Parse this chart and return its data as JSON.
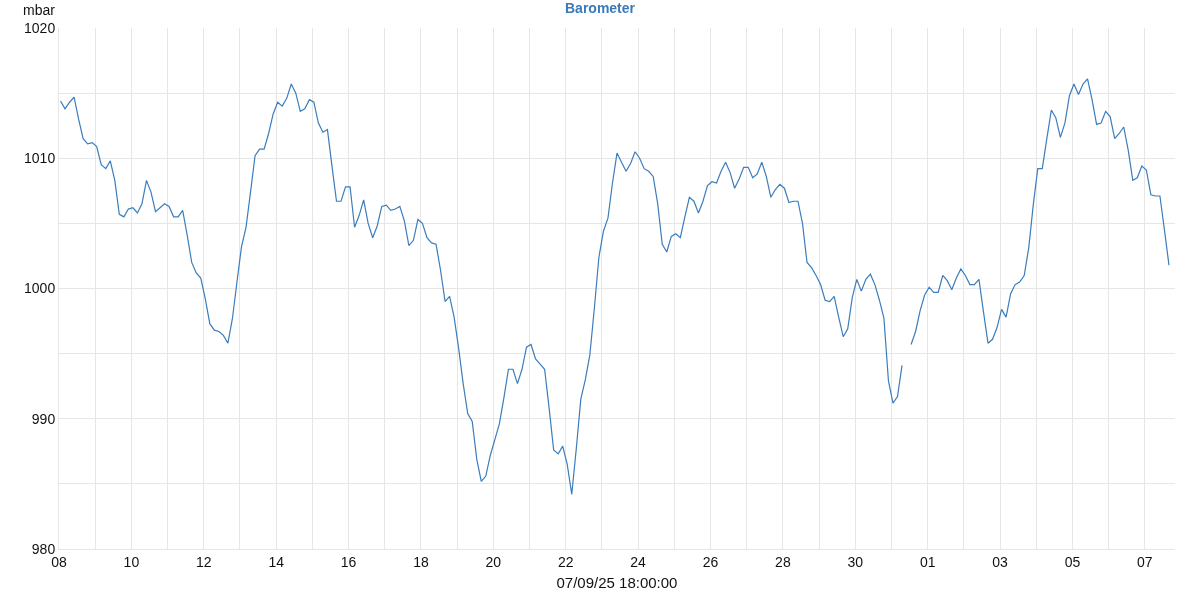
{
  "chart_data": {
    "type": "line",
    "title": "Barometer",
    "xlabel": "07/09/25 18:00:00",
    "ylabel": "mbar",
    "x": [
      "--08-08T01:00",
      "--08-08T04:00",
      "--08-08T07:00",
      "--08-08T10:00",
      "--08-08T13:00",
      "--08-08T16:00",
      "--08-08T19:00",
      "--08-08T22:00",
      "--08-09T01:00",
      "--08-09T04:00",
      "--08-09T07:00",
      "--08-09T10:00",
      "--08-09T13:00",
      "--08-09T16:00",
      "--08-09T19:00",
      "--08-09T22:00",
      "--08-10T01:00",
      "--08-10T04:00",
      "--08-10T07:00",
      "--08-10T10:00",
      "--08-10T13:00",
      "--08-10T16:00",
      "--08-10T19:00",
      "--08-10T22:00",
      "--08-11T01:00",
      "--08-11T04:00",
      "--08-11T07:00",
      "--08-11T10:00",
      "--08-11T13:00",
      "--08-11T16:00",
      "--08-11T19:00",
      "--08-11T22:00",
      "--08-12T01:00",
      "--08-12T04:00",
      "--08-12T07:00",
      "--08-12T10:00",
      "--08-12T13:00",
      "--08-12T16:00",
      "--08-12T19:00",
      "--08-12T22:00",
      "--08-13T01:00",
      "--08-13T04:00",
      "--08-13T07:00",
      "--08-13T10:00",
      "--08-13T13:00",
      "--08-13T16:00",
      "--08-13T19:00",
      "--08-13T22:00",
      "--08-14T01:00",
      "--08-14T04:00",
      "--08-14T07:00",
      "--08-14T10:00",
      "--08-14T13:00",
      "--08-14T16:00",
      "--08-14T19:00",
      "--08-14T22:00",
      "--08-15T01:00",
      "--08-15T04:00",
      "--08-15T07:00",
      "--08-15T10:00",
      "--08-15T13:00",
      "--08-15T16:00",
      "--08-15T19:00",
      "--08-15T22:00",
      "--08-16T01:00",
      "--08-16T04:00",
      "--08-16T07:00",
      "--08-16T10:00",
      "--08-16T13:00",
      "--08-16T16:00",
      "--08-16T19:00",
      "--08-16T22:00",
      "--08-17T01:00",
      "--08-17T04:00",
      "--08-17T07:00",
      "--08-17T10:00",
      "--08-17T13:00",
      "--08-17T16:00",
      "--08-17T19:00",
      "--08-17T22:00",
      "--08-18T01:00",
      "--08-18T04:00",
      "--08-18T07:00",
      "--08-18T10:00",
      "--08-18T13:00",
      "--08-18T16:00",
      "--08-18T19:00",
      "--08-18T22:00",
      "--08-19T01:00",
      "--08-19T04:00",
      "--08-19T07:00",
      "--08-19T10:00",
      "--08-19T13:00",
      "--08-19T16:00",
      "--08-19T19:00",
      "--08-19T22:00",
      "--08-20T01:00",
      "--08-20T04:00",
      "--08-20T07:00",
      "--08-20T10:00",
      "--08-20T13:00",
      "--08-20T16:00",
      "--08-20T19:00",
      "--08-20T22:00",
      "--08-21T01:00",
      "--08-21T04:00",
      "--08-21T07:00",
      "--08-21T10:00",
      "--08-21T13:00",
      "--08-21T16:00",
      "--08-21T19:00",
      "--08-21T22:00",
      "--08-22T01:00",
      "--08-22T04:00",
      "--08-22T07:00",
      "--08-22T10:00",
      "--08-22T13:00",
      "--08-22T16:00",
      "--08-22T19:00",
      "--08-22T22:00",
      "--08-23T01:00",
      "--08-23T04:00",
      "--08-23T07:00",
      "--08-23T10:00",
      "--08-23T13:00",
      "--08-23T16:00",
      "--08-23T19:00",
      "--08-23T22:00",
      "--08-24T01:00",
      "--08-24T04:00",
      "--08-24T07:00",
      "--08-24T10:00",
      "--08-24T13:00",
      "--08-24T16:00",
      "--08-24T19:00",
      "--08-24T22:00",
      "--08-25T01:00",
      "--08-25T04:00",
      "--08-25T07:00",
      "--08-25T10:00",
      "--08-25T13:00",
      "--08-25T16:00",
      "--08-25T19:00",
      "--08-25T22:00",
      "--08-26T01:00",
      "--08-26T04:00",
      "--08-26T07:00",
      "--08-26T10:00",
      "--08-26T13:00",
      "--08-26T16:00",
      "--08-26T19:00",
      "--08-26T22:00",
      "--08-27T01:00",
      "--08-27T04:00",
      "--08-27T07:00",
      "--08-27T10:00",
      "--08-27T13:00",
      "--08-27T16:00",
      "--08-27T19:00",
      "--08-27T22:00",
      "--08-28T01:00",
      "--08-28T04:00",
      "--08-28T07:00",
      "--08-28T10:00",
      "--08-28T13:00",
      "--08-28T16:00",
      "--08-28T19:00",
      "--08-28T22:00",
      "--08-29T01:00",
      "--08-29T04:00",
      "--08-29T07:00",
      "--08-29T10:00",
      "--08-29T13:00",
      "--08-29T16:00",
      "--08-29T19:00",
      "--08-29T22:00",
      "--08-30T01:00",
      "--08-30T04:00",
      "--08-30T07:00",
      "--08-30T10:00",
      "--08-30T13:00",
      "--08-30T16:00",
      "--08-30T19:00",
      "--08-30T22:00",
      "--08-31T01:00",
      "--08-31T04:00",
      "--08-31T07:00",
      "--08-31T10:00",
      "--08-31T13:00",
      "--08-31T16:00",
      "--08-31T19:00",
      "--08-31T22:00",
      "--09-01T01:00",
      "--09-01T04:00",
      "--09-01T07:00",
      "--09-01T10:00",
      "--09-01T13:00",
      "--09-01T16:00",
      "--09-01T19:00",
      "--09-01T22:00",
      "--09-02T01:00",
      "--09-02T04:00",
      "--09-02T07:00",
      "--09-02T10:00",
      "--09-02T13:00",
      "--09-02T16:00",
      "--09-02T19:00",
      "--09-02T22:00",
      "--09-03T01:00",
      "--09-03T04:00",
      "--09-03T07:00",
      "--09-03T10:00",
      "--09-03T13:00",
      "--09-03T16:00",
      "--09-03T19:00",
      "--09-03T22:00",
      "--09-04T01:00",
      "--09-04T04:00",
      "--09-04T07:00",
      "--09-04T10:00",
      "--09-04T13:00",
      "--09-04T16:00",
      "--09-04T19:00",
      "--09-04T22:00",
      "--09-05T01:00",
      "--09-05T04:00",
      "--09-05T07:00",
      "--09-05T10:00",
      "--09-05T13:00",
      "--09-05T16:00",
      "--09-05T19:00",
      "--09-05T22:00",
      "--09-06T01:00",
      "--09-06T04:00",
      "--09-06T07:00",
      "--09-06T10:00",
      "--09-06T13:00",
      "--09-06T16:00",
      "--09-06T19:00",
      "--09-06T22:00",
      "--09-07T01:00",
      "--09-07T04:00",
      "--09-07T07:00",
      "--09-07T10:00",
      "--09-07T13:00",
      "--09-07T16:00"
    ],
    "series": [
      {
        "color": "#3b7dbd",
        "values": [
          1014.4,
          1013.8,
          1014.3,
          1014.7,
          1013.0,
          1011.5,
          1011.1,
          1011.2,
          1010.9,
          1009.5,
          1009.2,
          1009.8,
          1008.3,
          1005.7,
          1005.5,
          1006.1,
          1006.2,
          1005.8,
          1006.5,
          1008.3,
          1007.4,
          1005.9,
          1006.2,
          1006.5,
          1006.3,
          1005.5,
          1005.5,
          1006.0,
          1004.1,
          1002.0,
          1001.2,
          1000.8,
          999.2,
          997.3,
          996.8,
          996.7,
          996.4,
          995.8,
          997.7,
          1000.5,
          1003.2,
          1004.7,
          1007.4,
          1010.2,
          1010.7,
          1010.7,
          1011.9,
          1013.4,
          1014.3,
          1014.0,
          1014.6,
          1015.7,
          1015.0,
          1013.6,
          1013.8,
          1014.5,
          1014.3,
          1012.7,
          1012.0,
          1012.2,
          1009.4,
          1006.7,
          1006.7,
          1007.8,
          1007.8,
          1004.7,
          1005.6,
          1006.8,
          1005.0,
          1003.9,
          1004.8,
          1006.3,
          1006.4,
          1006.0,
          1006.1,
          1006.3,
          1005.2,
          1003.3,
          1003.7,
          1005.3,
          1005.0,
          1003.9,
          1003.5,
          1003.4,
          1001.4,
          999.0,
          999.4,
          997.8,
          995.4,
          992.7,
          990.4,
          989.8,
          986.9,
          985.2,
          985.6,
          987.2,
          988.4,
          989.6,
          991.6,
          993.8,
          993.8,
          992.7,
          993.8,
          995.5,
          995.7,
          994.6,
          994.2,
          993.8,
          990.8,
          987.6,
          987.3,
          987.9,
          986.5,
          984.2,
          987.7,
          991.5,
          993.0,
          994.9,
          998.5,
          1002.4,
          1004.4,
          1005.4,
          1008.1,
          1010.4,
          1009.7,
          1009.0,
          1009.6,
          1010.5,
          1010.0,
          1009.2,
          1009.0,
          1008.6,
          1006.5,
          1003.4,
          1002.8,
          1004.0,
          1004.2,
          1003.9,
          1005.5,
          1007.0,
          1006.7,
          1005.8,
          1006.7,
          1007.9,
          1008.2,
          1008.1,
          1009.0,
          1009.7,
          1008.9,
          1007.7,
          1008.4,
          1009.3,
          1009.3,
          1008.5,
          1008.8,
          1009.7,
          1008.6,
          1007.0,
          1007.6,
          1008.0,
          1007.7,
          1006.6,
          1006.7,
          1006.7,
          1005.0,
          1002.0,
          1001.6,
          1001.0,
          1000.3,
          999.1,
          999.0,
          999.4,
          997.8,
          996.3,
          996.9,
          999.3,
          1000.7,
          999.8,
          1000.7,
          1001.1,
          1000.3,
          999.1,
          997.7,
          992.9,
          991.2,
          991.7,
          994.1,
          null,
          995.7,
          996.7,
          998.3,
          999.5,
          1000.1,
          999.7,
          999.7,
          1001.0,
          1000.6,
          999.9,
          1000.8,
          1001.5,
          1001.0,
          1000.3,
          1000.3,
          1000.7,
          998.2,
          995.8,
          996.1,
          997.0,
          998.4,
          997.8,
          999.6,
          1000.3,
          1000.5,
          1001.0,
          1003.1,
          1006.4,
          1009.2,
          1009.2,
          1011.5,
          1013.7,
          1013.1,
          1011.6,
          1012.7,
          1014.8,
          1015.7,
          1014.9,
          1015.7,
          1016.1,
          1014.5,
          1012.6,
          1012.7,
          1013.6,
          1013.2,
          1011.5,
          1011.9,
          1012.4,
          1010.6,
          1008.3,
          1008.5,
          1009.4,
          1009.1,
          1007.2,
          1007.1,
          1007.1,
          1004.5,
          1001.8
        ]
      }
    ],
    "xlim": [
      "--08-08T00:00",
      "--09-07T20:00"
    ],
    "xticks": [
      {
        "value": "--08-08",
        "label": "08"
      },
      {
        "value": "--08-09",
        "label": null
      },
      {
        "value": "--08-10",
        "label": "10"
      },
      {
        "value": "--08-11",
        "label": null
      },
      {
        "value": "--08-12",
        "label": "12"
      },
      {
        "value": "--08-13",
        "label": null
      },
      {
        "value": "--08-14",
        "label": "14"
      },
      {
        "value": "--08-15",
        "label": null
      },
      {
        "value": "--08-16",
        "label": "16"
      },
      {
        "value": "--08-17",
        "label": null
      },
      {
        "value": "--08-18",
        "label": "18"
      },
      {
        "value": "--08-19",
        "label": null
      },
      {
        "value": "--08-20",
        "label": "20"
      },
      {
        "value": "--08-21",
        "label": null
      },
      {
        "value": "--08-22",
        "label": "22"
      },
      {
        "value": "--08-23",
        "label": null
      },
      {
        "value": "--08-24",
        "label": "24"
      },
      {
        "value": "--08-25",
        "label": null
      },
      {
        "value": "--08-26",
        "label": "26"
      },
      {
        "value": "--08-27",
        "label": null
      },
      {
        "value": "--08-28",
        "label": "28"
      },
      {
        "value": "--08-29",
        "label": null
      },
      {
        "value": "--08-30",
        "label": "30"
      },
      {
        "value": "--08-31",
        "label": null
      },
      {
        "value": "--09-01",
        "label": "01"
      },
      {
        "value": "--09-02",
        "label": null
      },
      {
        "value": "--09-03",
        "label": "03"
      },
      {
        "value": "--09-04",
        "label": null
      },
      {
        "value": "--09-05",
        "label": "05"
      },
      {
        "value": "--09-06",
        "label": null
      },
      {
        "value": "--09-07",
        "label": "07"
      }
    ],
    "ylim": [
      980,
      1020
    ],
    "yticks": [
      980,
      {
        "value": 985,
        "label": null
      },
      990,
      {
        "value": 995,
        "label": null
      },
      1000,
      {
        "value": 1005,
        "label": null
      },
      1010,
      {
        "value": 1015,
        "label": null
      },
      1020
    ],
    "grid": true,
    "marker": "none",
    "line_style": "solid"
  }
}
